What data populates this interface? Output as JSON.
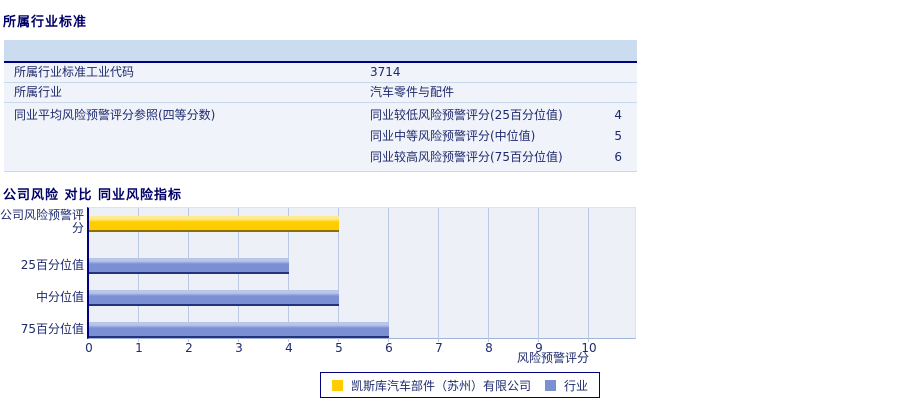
{
  "section1": {
    "title": "所属行业标准",
    "table": {
      "rows": [
        {
          "label": "所属行业标准工业代码",
          "value": "3714"
        },
        {
          "label": "所属行业",
          "value": "汽车零件与配件"
        },
        {
          "label": "同业平均风险预警评分参照(四等分数)",
          "subrows": [
            {
              "label": "同业较低风险预警评分(25百分位值)",
              "value": "4"
            },
            {
              "label": "同业中等风险预警评分(中位值)",
              "value": "5"
            },
            {
              "label": "同业较高风险预警评分(75百分位值)",
              "value": "6"
            }
          ]
        }
      ]
    }
  },
  "section2": {
    "title": "公司风险 对比 同业风险指标"
  },
  "chart_data": {
    "type": "bar",
    "orientation": "horizontal",
    "title": "公司风险 对比 同业风险指标",
    "categories": [
      "公司风险预警评分",
      "25百分位值",
      "中分位值",
      "75百分位值"
    ],
    "values": [
      5,
      4,
      5,
      6
    ],
    "bar_colors": [
      "#FFCC00",
      "#7A90D2",
      "#7A90D2",
      "#7A90D2"
    ],
    "xlabel": "风险预警评分",
    "xlim": [
      0,
      10
    ],
    "xticks": [
      0,
      1,
      2,
      3,
      4,
      5,
      6,
      7,
      8,
      9,
      10
    ],
    "grid": true,
    "legend_position": "bottom",
    "legend": [
      {
        "label": "凯斯库汽车部件（苏州）有限公司",
        "color": "#FFCC00"
      },
      {
        "label": "行业",
        "color": "#7A90D2"
      }
    ],
    "colors": {
      "plot_background": "#EDF1F7",
      "gridline": "#B9C9E6",
      "axis": "#000080",
      "text": "#1E2A6E"
    }
  }
}
